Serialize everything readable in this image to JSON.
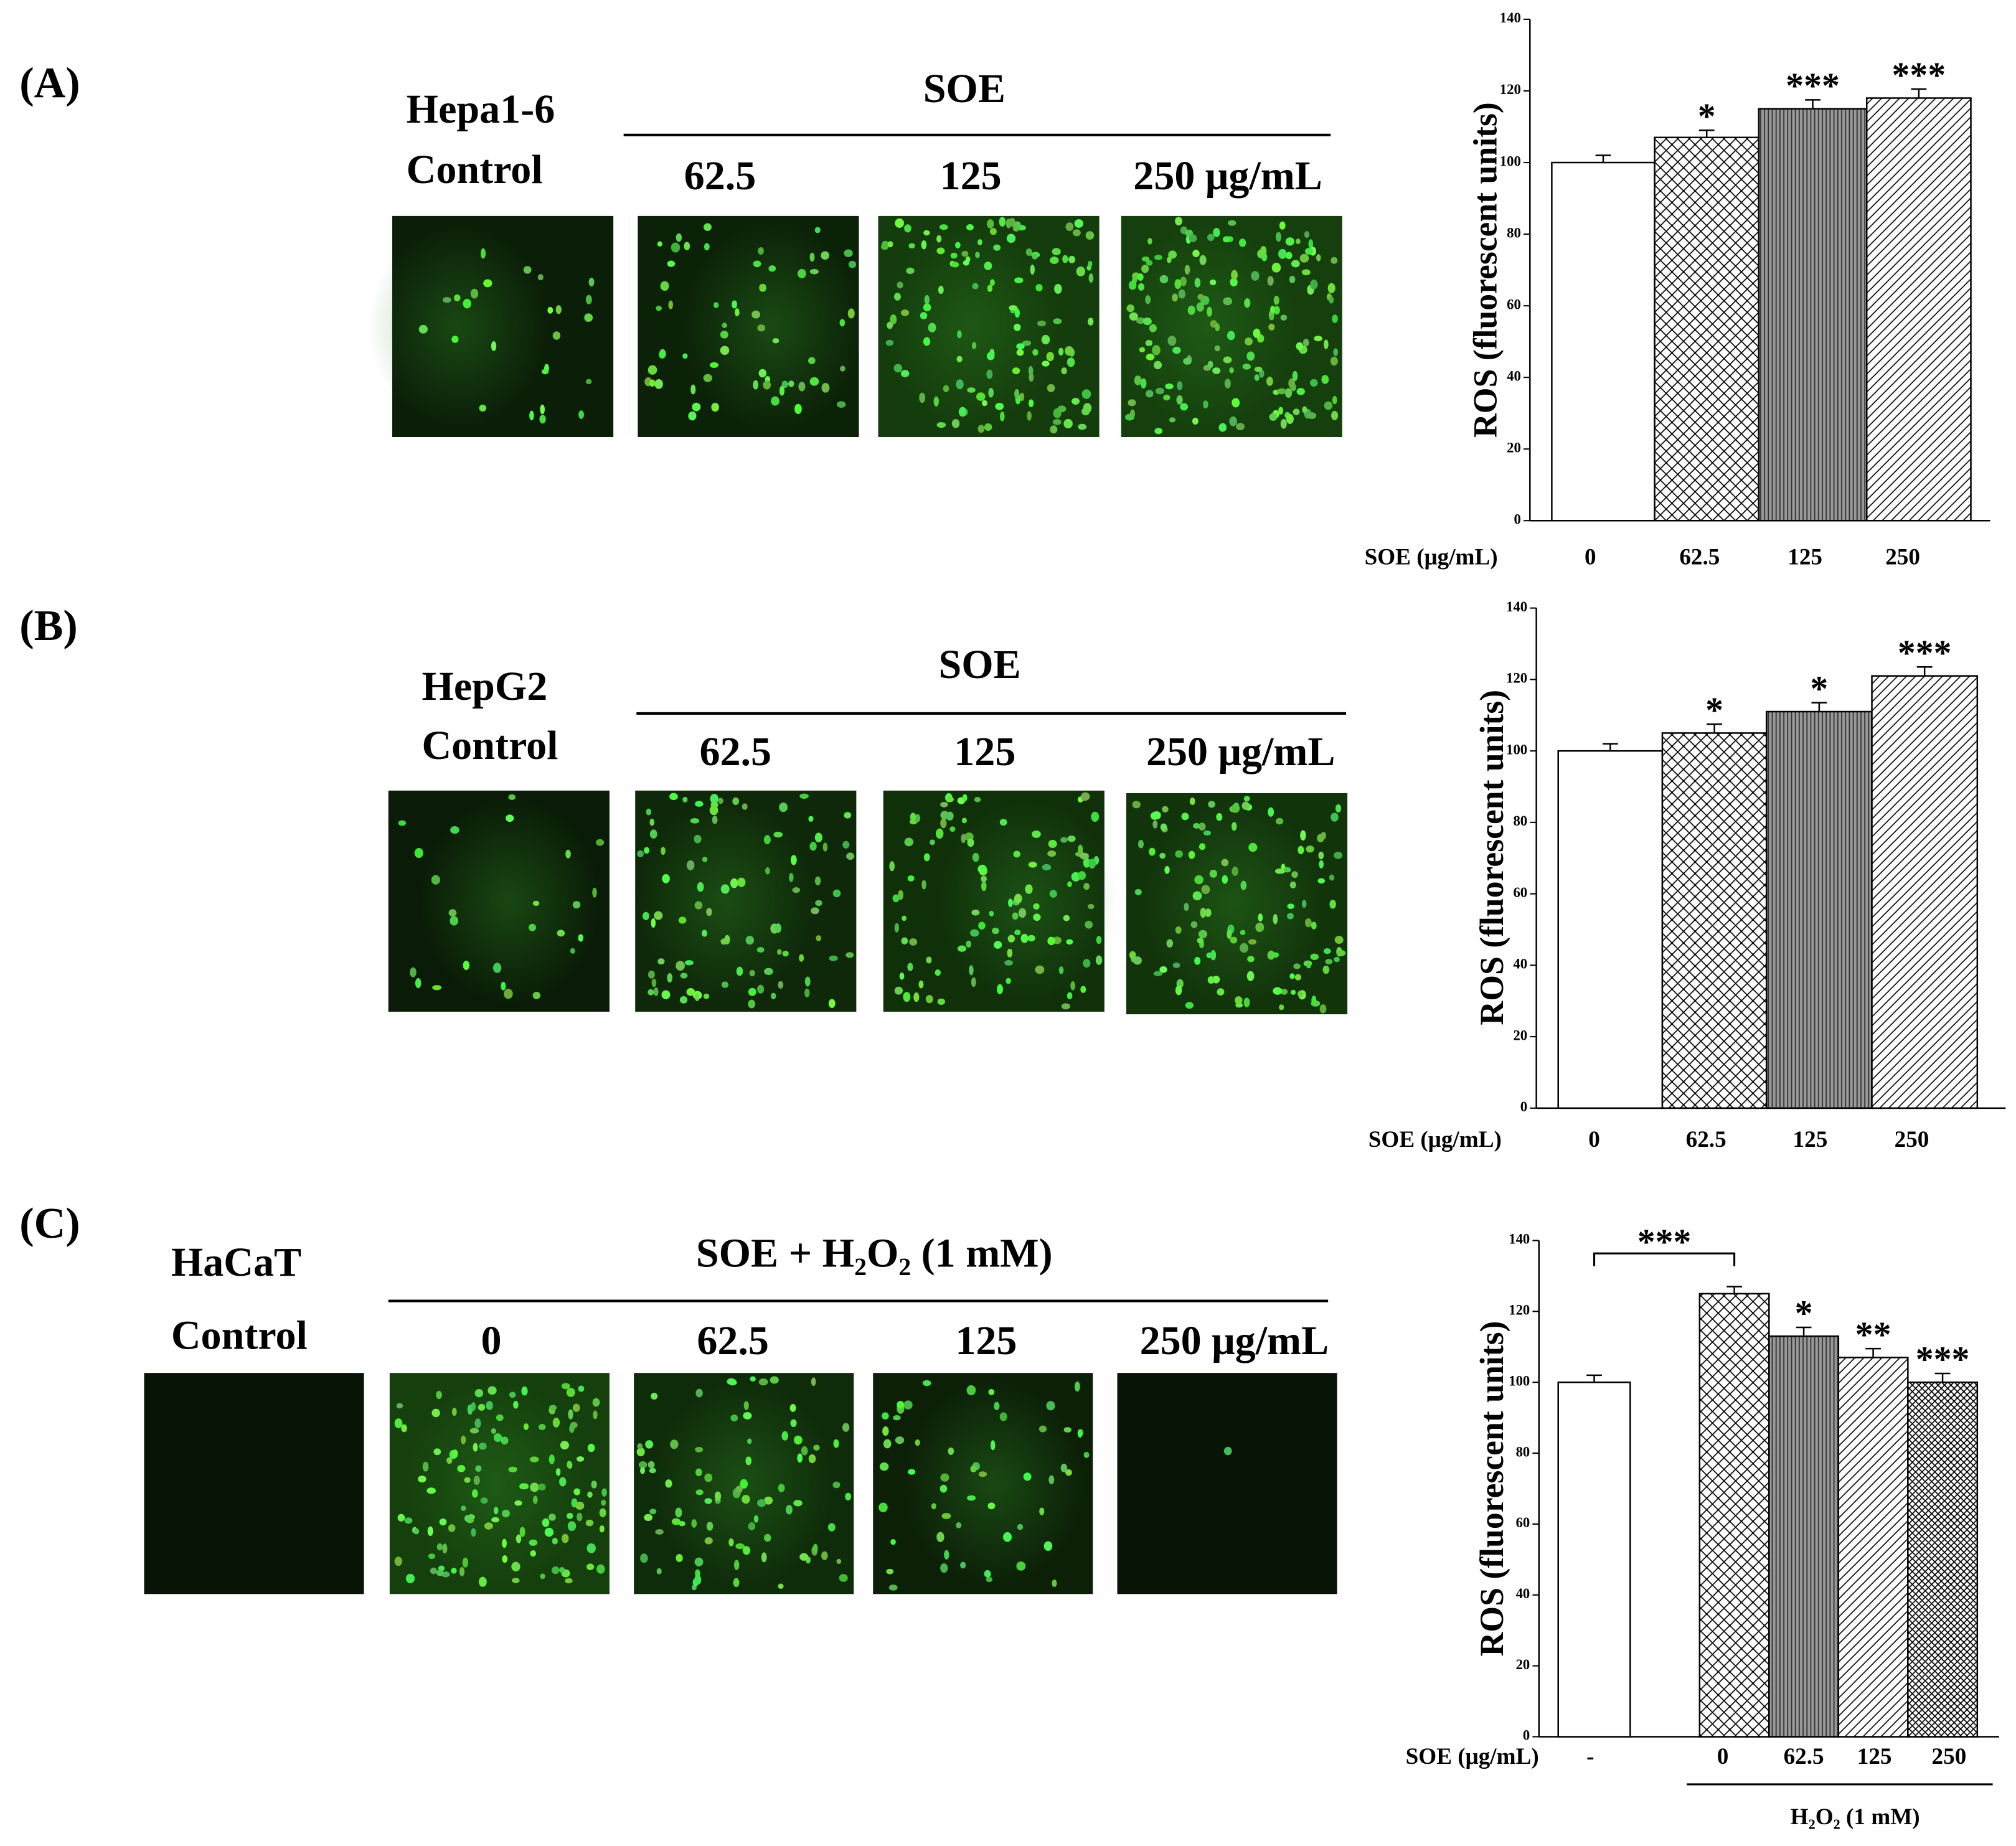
{
  "figure": {
    "panels": [
      {
        "label": "(A)",
        "cell_line": "Hepa1-6",
        "control": "Control",
        "treatment": "SOE",
        "doses": [
          "62.5",
          "125",
          "250 μg/mL"
        ]
      },
      {
        "label": "(B)",
        "cell_line": "HepG2",
        "control": "Control",
        "treatment": "SOE",
        "doses": [
          "62.5",
          "125",
          "250 μg/mL"
        ]
      },
      {
        "label": "(C)",
        "cell_line": "HaCaT",
        "control": "Control",
        "treatment": "SOE + H₂O₂ (1 mM)",
        "doses": [
          "0",
          "62.5",
          "125",
          "250 μg/mL"
        ]
      }
    ]
  },
  "chart_data": [
    {
      "type": "bar",
      "y_label": "ROS (fluorescent units)",
      "x_label": "SOE (μg/mL)",
      "categories": [
        "0",
        "62.5",
        "125",
        "250"
      ],
      "values": [
        100,
        107,
        115,
        118
      ],
      "errors": [
        2,
        2,
        2.5,
        2.5
      ],
      "significance": [
        null,
        "*",
        "***",
        "***"
      ],
      "bar_patterns": [
        "none",
        "crosshatch",
        "vertical",
        "diagonal"
      ],
      "color": "#000000",
      "ylim": [
        0,
        140
      ],
      "yticks": [
        0,
        20,
        40,
        60,
        80,
        100,
        120,
        140
      ]
    },
    {
      "type": "bar",
      "y_label": "ROS (fluorescent units)",
      "x_label": "SOE (μg/mL)",
      "categories": [
        "0",
        "62.5",
        "125",
        "250"
      ],
      "values": [
        100,
        105,
        111,
        121
      ],
      "errors": [
        2,
        2.5,
        2.5,
        2.5
      ],
      "significance": [
        null,
        "*",
        "*",
        "***"
      ],
      "bar_patterns": [
        "none",
        "crosshatch",
        "vertical",
        "diagonal"
      ],
      "color": "#000000",
      "ylim": [
        0,
        140
      ],
      "yticks": [
        0,
        20,
        40,
        60,
        80,
        100,
        120,
        140
      ]
    },
    {
      "type": "bar",
      "y_label": "ROS (fluorescent units)",
      "x_label": "SOE (μg/mL)",
      "categories": [
        "-",
        "0",
        "62.5",
        "125",
        "250"
      ],
      "values": [
        100,
        125,
        113,
        107,
        100
      ],
      "errors": [
        2,
        2,
        2.5,
        2.5,
        2.5
      ],
      "significance": [
        null,
        null,
        "*",
        "**",
        "***"
      ],
      "bracket_label": "***",
      "group_label": "H₂O₂ (1 mM)",
      "bar_patterns": [
        "none",
        "crosshatch",
        "vertical",
        "diagonal",
        "dense-crosshatch"
      ],
      "color": "#000000",
      "ylim": [
        0,
        140
      ],
      "yticks": [
        0,
        20,
        40,
        60,
        80,
        100,
        120,
        140
      ]
    }
  ]
}
